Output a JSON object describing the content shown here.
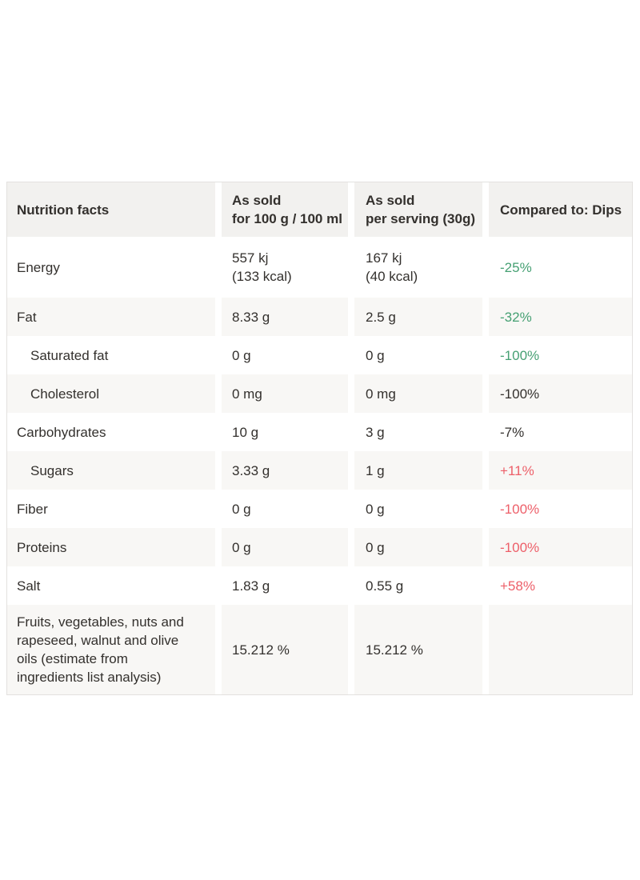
{
  "colors": {
    "table_border": "#e3e1df",
    "header_bg": "#f2f1ef",
    "alt_row_bg": "#f8f7f5",
    "text": "#33302d",
    "decrease_good_green": "#46a073",
    "increase_bad_red": "#ed5f69"
  },
  "table": {
    "header": {
      "nutrient": "Nutrition facts",
      "as_sold_100g": "As sold\nfor 100 g / 100 ml",
      "per_serving": "As sold\nper serving (30g)",
      "compared": "Compared to: Dips"
    },
    "rows": [
      {
        "label": "Energy",
        "as_sold": "557 kj\n(133 kcal)",
        "per_serving": "167 kj\n(40 kcal)",
        "compared": "-25%",
        "compared_color": "#46a073"
      },
      {
        "label": "Fat",
        "as_sold": "8.33 g",
        "per_serving": "2.5 g",
        "compared": "-32%",
        "compared_color": "#46a073"
      },
      {
        "label": "Saturated fat",
        "as_sold": "0 g",
        "per_serving": "0 g",
        "compared": "-100%",
        "compared_color": "#46a073"
      },
      {
        "label": "Cholesterol",
        "as_sold": "0 mg",
        "per_serving": "0 mg",
        "compared": "-100%",
        "compared_color": "#33302d"
      },
      {
        "label": "Carbohydrates",
        "as_sold": "10 g",
        "per_serving": "3 g",
        "compared": "-7%",
        "compared_color": "#33302d"
      },
      {
        "label": "Sugars",
        "as_sold": "3.33 g",
        "per_serving": "1 g",
        "compared": "+11%",
        "compared_color": "#ed5f69"
      },
      {
        "label": "Fiber",
        "as_sold": "0 g",
        "per_serving": "0 g",
        "compared": "-100%",
        "compared_color": "#ed5f69"
      },
      {
        "label": "Proteins",
        "as_sold": "0 g",
        "per_serving": "0 g",
        "compared": "-100%",
        "compared_color": "#ed5f69"
      },
      {
        "label": "Salt",
        "as_sold": "1.83 g",
        "per_serving": "0.55 g",
        "compared": "+58%",
        "compared_color": "#ed5f69"
      },
      {
        "label": "Fruits, vegetables, nuts and rapeseed, walnut and olive oils (estimate from ingredients list analysis)",
        "as_sold": "15.212 %",
        "per_serving": "15.212 %",
        "compared": "",
        "compared_color": "#33302d"
      }
    ]
  },
  "chart_data": {
    "type": "table",
    "title": "Nutrition facts",
    "columns": [
      "Nutrition facts",
      "As sold for 100 g / 100 ml",
      "As sold per serving (30g)",
      "Compared to: Dips"
    ],
    "rows": [
      [
        "Energy",
        "557 kj (133 kcal)",
        "167 kj (40 kcal)",
        "-25%"
      ],
      [
        "Fat",
        "8.33 g",
        "2.5 g",
        "-32%"
      ],
      [
        "Saturated fat",
        "0 g",
        "0 g",
        "-100%"
      ],
      [
        "Cholesterol",
        "0 mg",
        "0 mg",
        "-100%"
      ],
      [
        "Carbohydrates",
        "10 g",
        "3 g",
        "-7%"
      ],
      [
        "Sugars",
        "3.33 g",
        "1 g",
        "+11%"
      ],
      [
        "Fiber",
        "0 g",
        "0 g",
        "-100%"
      ],
      [
        "Proteins",
        "0 g",
        "0 g",
        "-100%"
      ],
      [
        "Salt",
        "1.83 g",
        "0.55 g",
        "+58%"
      ],
      [
        "Fruits, vegetables, nuts and rapeseed, walnut and olive oils (estimate from ingredients list analysis)",
        "15.212 %",
        "15.212 %",
        ""
      ]
    ]
  }
}
